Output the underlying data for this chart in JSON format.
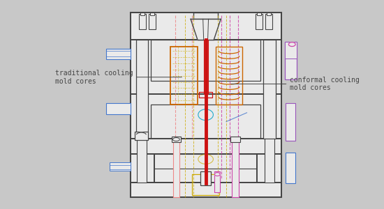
{
  "bg_color": "#c8c8c8",
  "panel_bg": "#eaeaea",
  "dc": "#444444",
  "rc": "#cc1111",
  "oc": "#cc6600",
  "yc": "#ccaa00",
  "pc": "#cc44aa",
  "vc": "#9955bb",
  "bc": "#4477cc",
  "cc": "#22aacc",
  "lrc": "#ee8888",
  "sc": "#888888",
  "ann1_text": "traditional cooling\nmold cores",
  "ann2_text": "conformal cooling\nmold cores",
  "fontsize": 7.0
}
